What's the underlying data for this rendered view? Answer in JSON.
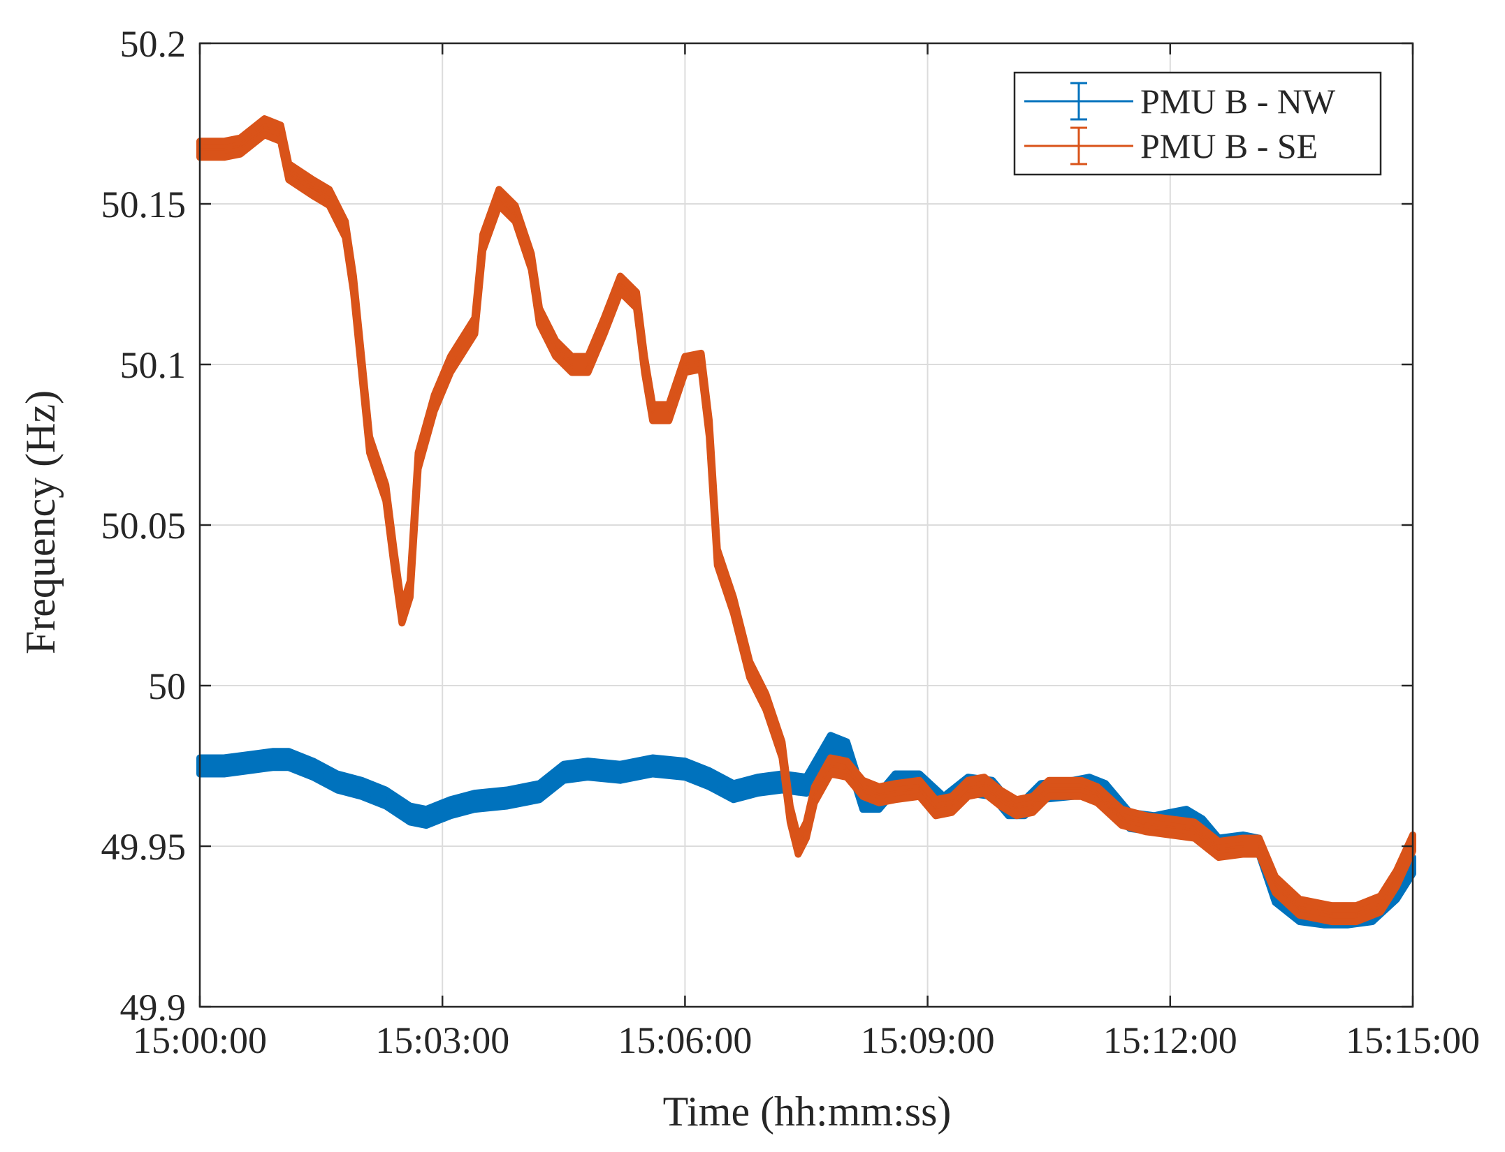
{
  "chart_data": {
    "type": "line",
    "title": "",
    "xlabel": "Time (hh:mm:ss)",
    "ylabel": "Frequency (Hz)",
    "xlim": [
      "15:00:00",
      "15:15:00"
    ],
    "ylim": [
      49.9,
      50.2
    ],
    "x_ticks": [
      "15:00:00",
      "15:03:00",
      "15:06:00",
      "15:09:00",
      "15:12:00",
      "15:15:00"
    ],
    "y_ticks": [
      "49.9",
      "49.95",
      "50",
      "50.05",
      "50.1",
      "50.15",
      "50.2"
    ],
    "grid": true,
    "legend_position": "top-right",
    "error_bars": true,
    "series": [
      {
        "name": "PMU B - NW",
        "color": "#0072bd",
        "error_halfwidth": 0.0025,
        "points": [
          [
            "15:00:00",
            49.975
          ],
          [
            "15:00:18",
            49.975
          ],
          [
            "15:00:36",
            49.976
          ],
          [
            "15:00:54",
            49.977
          ],
          [
            "15:01:06",
            49.977
          ],
          [
            "15:01:24",
            49.974
          ],
          [
            "15:01:42",
            49.97
          ],
          [
            "15:02:00",
            49.968
          ],
          [
            "15:02:18",
            49.965
          ],
          [
            "15:02:36",
            49.96
          ],
          [
            "15:02:48",
            49.959
          ],
          [
            "15:03:06",
            49.962
          ],
          [
            "15:03:24",
            49.964
          ],
          [
            "15:03:48",
            49.965
          ],
          [
            "15:04:12",
            49.967
          ],
          [
            "15:04:30",
            49.973
          ],
          [
            "15:04:48",
            49.974
          ],
          [
            "15:05:12",
            49.973
          ],
          [
            "15:05:36",
            49.975
          ],
          [
            "15:06:00",
            49.974
          ],
          [
            "15:06:18",
            49.971
          ],
          [
            "15:06:36",
            49.967
          ],
          [
            "15:06:54",
            49.969
          ],
          [
            "15:07:12",
            49.97
          ],
          [
            "15:07:30",
            49.969
          ],
          [
            "15:07:48",
            49.982
          ],
          [
            "15:08:00",
            49.98
          ],
          [
            "15:08:12",
            49.964
          ],
          [
            "15:08:24",
            49.964
          ],
          [
            "15:08:36",
            49.97
          ],
          [
            "15:08:54",
            49.97
          ],
          [
            "15:09:12",
            49.963
          ],
          [
            "15:09:30",
            49.969
          ],
          [
            "15:09:48",
            49.968
          ],
          [
            "15:10:00",
            49.962
          ],
          [
            "15:10:12",
            49.962
          ],
          [
            "15:10:24",
            49.967
          ],
          [
            "15:10:48",
            49.968
          ],
          [
            "15:11:00",
            49.969
          ],
          [
            "15:11:12",
            49.967
          ],
          [
            "15:11:30",
            49.958
          ],
          [
            "15:11:48",
            49.957
          ],
          [
            "15:12:00",
            49.958
          ],
          [
            "15:12:12",
            49.959
          ],
          [
            "15:12:24",
            49.956
          ],
          [
            "15:12:36",
            49.95
          ],
          [
            "15:12:54",
            49.951
          ],
          [
            "15:13:06",
            49.95
          ],
          [
            "15:13:18",
            49.935
          ],
          [
            "15:13:36",
            49.929
          ],
          [
            "15:13:54",
            49.928
          ],
          [
            "15:14:12",
            49.928
          ],
          [
            "15:14:30",
            49.929
          ],
          [
            "15:14:48",
            49.936
          ],
          [
            "15:15:00",
            49.944
          ]
        ]
      },
      {
        "name": "PMU B - SE",
        "color": "#d95319",
        "error_halfwidth": 0.0025,
        "points": [
          [
            "15:00:00",
            50.167
          ],
          [
            "15:00:18",
            50.167
          ],
          [
            "15:00:30",
            50.168
          ],
          [
            "15:00:48",
            50.174
          ],
          [
            "15:01:00",
            50.172
          ],
          [
            "15:01:06",
            50.16
          ],
          [
            "15:01:24",
            50.155
          ],
          [
            "15:01:36",
            50.152
          ],
          [
            "15:01:48",
            50.142
          ],
          [
            "15:01:54",
            50.125
          ],
          [
            "15:02:00",
            50.1
          ],
          [
            "15:02:06",
            50.075
          ],
          [
            "15:02:18",
            50.06
          ],
          [
            "15:02:24",
            50.04
          ],
          [
            "15:02:30",
            50.022
          ],
          [
            "15:02:36",
            50.03
          ],
          [
            "15:02:42",
            50.07
          ],
          [
            "15:02:54",
            50.088
          ],
          [
            "15:03:06",
            50.1
          ],
          [
            "15:03:24",
            50.112
          ],
          [
            "15:03:30",
            50.138
          ],
          [
            "15:03:42",
            50.152
          ],
          [
            "15:03:54",
            50.147
          ],
          [
            "15:04:06",
            50.132
          ],
          [
            "15:04:12",
            50.115
          ],
          [
            "15:04:24",
            50.105
          ],
          [
            "15:04:36",
            50.1
          ],
          [
            "15:04:48",
            50.1
          ],
          [
            "15:05:00",
            50.112
          ],
          [
            "15:05:12",
            50.125
          ],
          [
            "15:05:24",
            50.12
          ],
          [
            "15:05:30",
            50.1
          ],
          [
            "15:05:36",
            50.085
          ],
          [
            "15:05:48",
            50.085
          ],
          [
            "15:06:00",
            50.1
          ],
          [
            "15:06:12",
            50.101
          ],
          [
            "15:06:18",
            50.08
          ],
          [
            "15:06:24",
            50.04
          ],
          [
            "15:06:36",
            50.025
          ],
          [
            "15:06:48",
            50.005
          ],
          [
            "15:07:00",
            49.995
          ],
          [
            "15:07:12",
            49.98
          ],
          [
            "15:07:18",
            49.96
          ],
          [
            "15:07:24",
            49.95
          ],
          [
            "15:07:30",
            49.955
          ],
          [
            "15:07:36",
            49.966
          ],
          [
            "15:07:48",
            49.975
          ],
          [
            "15:08:00",
            49.974
          ],
          [
            "15:08:12",
            49.968
          ],
          [
            "15:08:24",
            49.966
          ],
          [
            "15:08:36",
            49.967
          ],
          [
            "15:08:54",
            49.968
          ],
          [
            "15:09:06",
            49.962
          ],
          [
            "15:09:18",
            49.963
          ],
          [
            "15:09:30",
            49.968
          ],
          [
            "15:09:42",
            49.969
          ],
          [
            "15:09:54",
            49.965
          ],
          [
            "15:10:06",
            49.962
          ],
          [
            "15:10:18",
            49.963
          ],
          [
            "15:10:30",
            49.968
          ],
          [
            "15:10:54",
            49.968
          ],
          [
            "15:11:06",
            49.966
          ],
          [
            "15:11:24",
            49.959
          ],
          [
            "15:11:42",
            49.957
          ],
          [
            "15:12:00",
            49.956
          ],
          [
            "15:12:18",
            49.955
          ],
          [
            "15:12:36",
            49.949
          ],
          [
            "15:12:54",
            49.95
          ],
          [
            "15:13:06",
            49.95
          ],
          [
            "15:13:18",
            49.938
          ],
          [
            "15:13:36",
            49.931
          ],
          [
            "15:14:00",
            49.929
          ],
          [
            "15:14:18",
            49.929
          ],
          [
            "15:14:36",
            49.932
          ],
          [
            "15:14:48",
            49.94
          ],
          [
            "15:15:00",
            49.951
          ]
        ]
      }
    ]
  }
}
